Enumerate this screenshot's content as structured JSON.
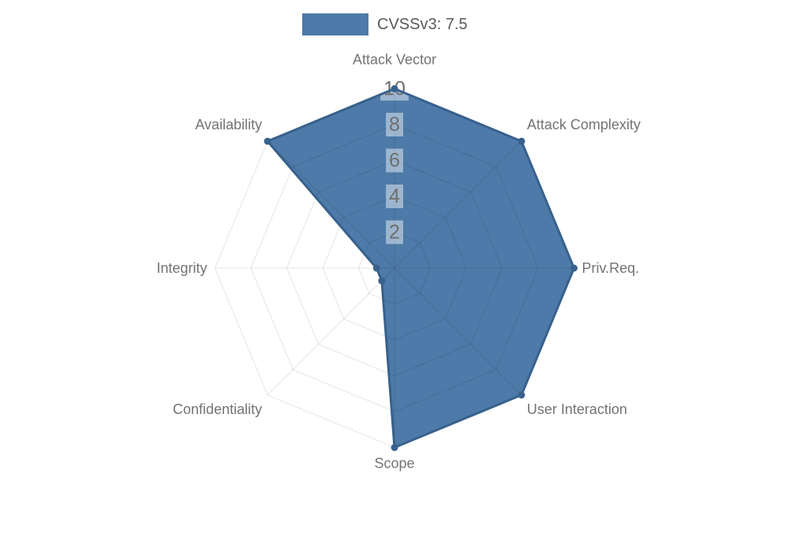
{
  "legend": {
    "label": "CVSSv3: 7.5",
    "position": "top"
  },
  "chart_data": {
    "type": "radar",
    "title": "CVSSv3: 7.5",
    "axes": [
      "Attack Vector",
      "Attack Complexity",
      "Priv.Req.",
      "User Interaction",
      "Scope",
      "Confidentiality",
      "Integrity",
      "Availability"
    ],
    "series": [
      {
        "name": "CVSSv3: 7.5",
        "values": [
          10,
          10,
          10,
          10,
          10,
          1,
          1,
          10
        ]
      }
    ],
    "scale": {
      "min": 0,
      "max": 10,
      "tick_step": 2,
      "ticks": [
        2,
        4,
        6,
        8,
        10
      ]
    },
    "grid": {
      "shape": "polygon",
      "rings": 5,
      "visible": true
    },
    "legend_position": "top-center",
    "colors": {
      "fill": "#4d7aa8",
      "stroke": "#38618c",
      "marker": "#38618c",
      "grid_line": "rgba(0,0,0,0.10)",
      "tick_text": "#6e6e6e",
      "tick_backdrop": "rgba(255,255,255,0.45)",
      "axis_label_text": "#737373",
      "legend_text": "#595959",
      "background": "#ffffff"
    }
  }
}
